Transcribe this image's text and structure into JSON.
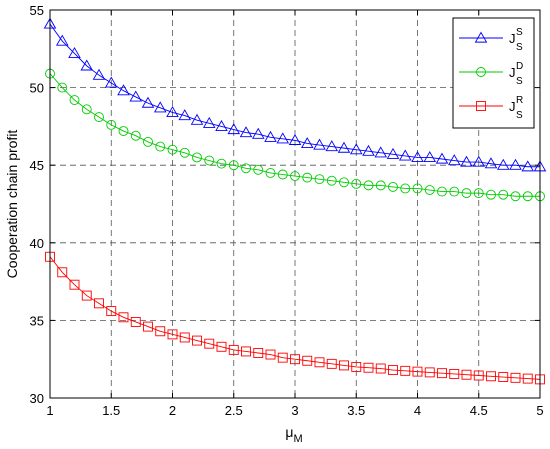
{
  "chart_data": {
    "type": "line",
    "xlabel": "μ",
    "xlabel_sub": "M",
    "ylabel": "Cooperation chain profit",
    "xlim": [
      1,
      5
    ],
    "ylim": [
      30,
      55
    ],
    "x_ticks": [
      1,
      1.5,
      2,
      2.5,
      3,
      3.5,
      4,
      4.5,
      5
    ],
    "x_tick_labels": [
      "1",
      "1.5",
      "2",
      "2.5",
      "3",
      "3.5",
      "4",
      "4.5",
      "5"
    ],
    "y_ticks": [
      30,
      35,
      40,
      45,
      50,
      55
    ],
    "y_tick_labels": [
      "30",
      "35",
      "40",
      "45",
      "50",
      "55"
    ],
    "grid": true,
    "legend_position": "top-right",
    "x": [
      1.0,
      1.1,
      1.2,
      1.3,
      1.4,
      1.5,
      1.6,
      1.7,
      1.8,
      1.9,
      2.0,
      2.1,
      2.2,
      2.3,
      2.4,
      2.5,
      2.6,
      2.7,
      2.8,
      2.9,
      3.0,
      3.1,
      3.2,
      3.3,
      3.4,
      3.5,
      3.6,
      3.7,
      3.8,
      3.9,
      4.0,
      4.1,
      4.2,
      4.3,
      4.4,
      4.5,
      4.6,
      4.7,
      4.8,
      4.9,
      5.0
    ],
    "series": [
      {
        "label_main": "J",
        "label_sup": "S",
        "label_sub": "S",
        "color": "#0000ff",
        "marker": "triangle",
        "values": [
          54.1,
          53.0,
          52.2,
          51.4,
          50.8,
          50.3,
          49.8,
          49.4,
          49.0,
          48.7,
          48.4,
          48.2,
          47.9,
          47.7,
          47.5,
          47.3,
          47.1,
          47.0,
          46.8,
          46.7,
          46.6,
          46.4,
          46.3,
          46.2,
          46.1,
          46.0,
          45.9,
          45.8,
          45.7,
          45.6,
          45.5,
          45.5,
          45.4,
          45.3,
          45.2,
          45.2,
          45.1,
          45.0,
          45.0,
          44.9,
          44.9
        ]
      },
      {
        "label_main": "J",
        "label_sup": "D",
        "label_sub": "S",
        "color": "#00cc00",
        "marker": "circle",
        "values": [
          50.9,
          50.0,
          49.2,
          48.6,
          48.1,
          47.6,
          47.2,
          46.9,
          46.5,
          46.2,
          46.0,
          45.8,
          45.5,
          45.3,
          45.1,
          45.0,
          44.8,
          44.7,
          44.5,
          44.4,
          44.3,
          44.2,
          44.1,
          44.0,
          43.9,
          43.8,
          43.7,
          43.7,
          43.6,
          43.5,
          43.5,
          43.4,
          43.3,
          43.3,
          43.2,
          43.2,
          43.1,
          43.1,
          43.0,
          43.0,
          43.0
        ]
      },
      {
        "label_main": "J",
        "label_sup": "R",
        "label_sub": "S",
        "color": "#ff0000",
        "marker": "square",
        "values": [
          39.1,
          38.1,
          37.3,
          36.6,
          36.1,
          35.6,
          35.2,
          34.9,
          34.6,
          34.3,
          34.1,
          33.9,
          33.7,
          33.5,
          33.3,
          33.1,
          33.0,
          32.9,
          32.8,
          32.6,
          32.5,
          32.4,
          32.3,
          32.2,
          32.1,
          32.0,
          31.95,
          31.9,
          31.8,
          31.75,
          31.7,
          31.65,
          31.6,
          31.55,
          31.5,
          31.45,
          31.4,
          31.35,
          31.3,
          31.25,
          31.2
        ]
      }
    ]
  }
}
